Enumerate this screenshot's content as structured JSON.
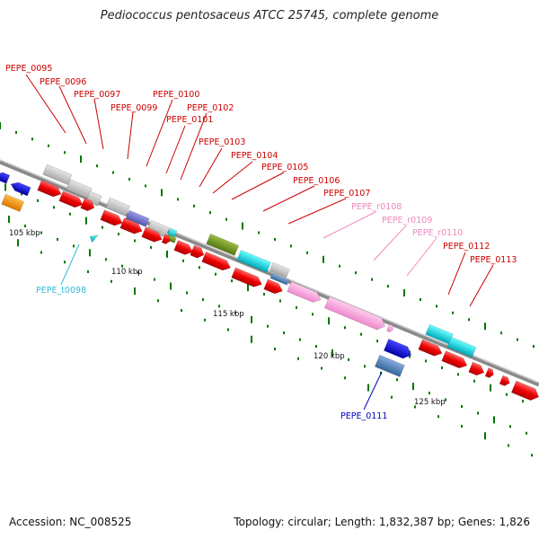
{
  "title": "Pediococcus pentosaceus ATCC 25745, complete genome",
  "footer": {
    "accession": "Accession: NC_008525",
    "topology": "Topology: circular; Length: 1,832,387 bp; Genes: 1,826"
  },
  "colors": {
    "backbone": "#8f8f8f",
    "cds": "#ff0000",
    "trna": "#33ccee",
    "rrna": "#ff99cc",
    "label_red": "#cc0000",
    "label_pink": "#ee88bb",
    "label_cyan": "#33bbdd",
    "label_blue": "#0000bb",
    "tick": "#007700"
  },
  "kbp_marks": [
    {
      "label": "105 kbp"
    },
    {
      "label": "110 kbp"
    },
    {
      "label": "115 kbp"
    },
    {
      "label": "120 kbp"
    },
    {
      "label": "125 kbp"
    }
  ],
  "gene_labels": [
    {
      "text": "PEPE_0095",
      "kind": "cds"
    },
    {
      "text": "PEPE_0096",
      "kind": "cds"
    },
    {
      "text": "PEPE_0097",
      "kind": "cds"
    },
    {
      "text": "PEPE_0099",
      "kind": "cds"
    },
    {
      "text": "PEPE_0100",
      "kind": "cds"
    },
    {
      "text": "PEPE_0101",
      "kind": "cds"
    },
    {
      "text": "PEPE_0102",
      "kind": "cds"
    },
    {
      "text": "PEPE_0103",
      "kind": "cds"
    },
    {
      "text": "PEPE_0104",
      "kind": "cds"
    },
    {
      "text": "PEPE_0105",
      "kind": "cds"
    },
    {
      "text": "PEPE_0106",
      "kind": "cds"
    },
    {
      "text": "PEPE_0107",
      "kind": "cds"
    },
    {
      "text": "PEPE_r0108",
      "kind": "rrna"
    },
    {
      "text": "PEPE_r0109",
      "kind": "rrna"
    },
    {
      "text": "PEPE_r0110",
      "kind": "rrna"
    },
    {
      "text": "PEPE_0112",
      "kind": "cds"
    },
    {
      "text": "PEPE_0113",
      "kind": "cds"
    },
    {
      "text": "PEPE_t0098",
      "kind": "trna"
    },
    {
      "text": "PEPE_0111",
      "kind": "cds_minus"
    }
  ]
}
